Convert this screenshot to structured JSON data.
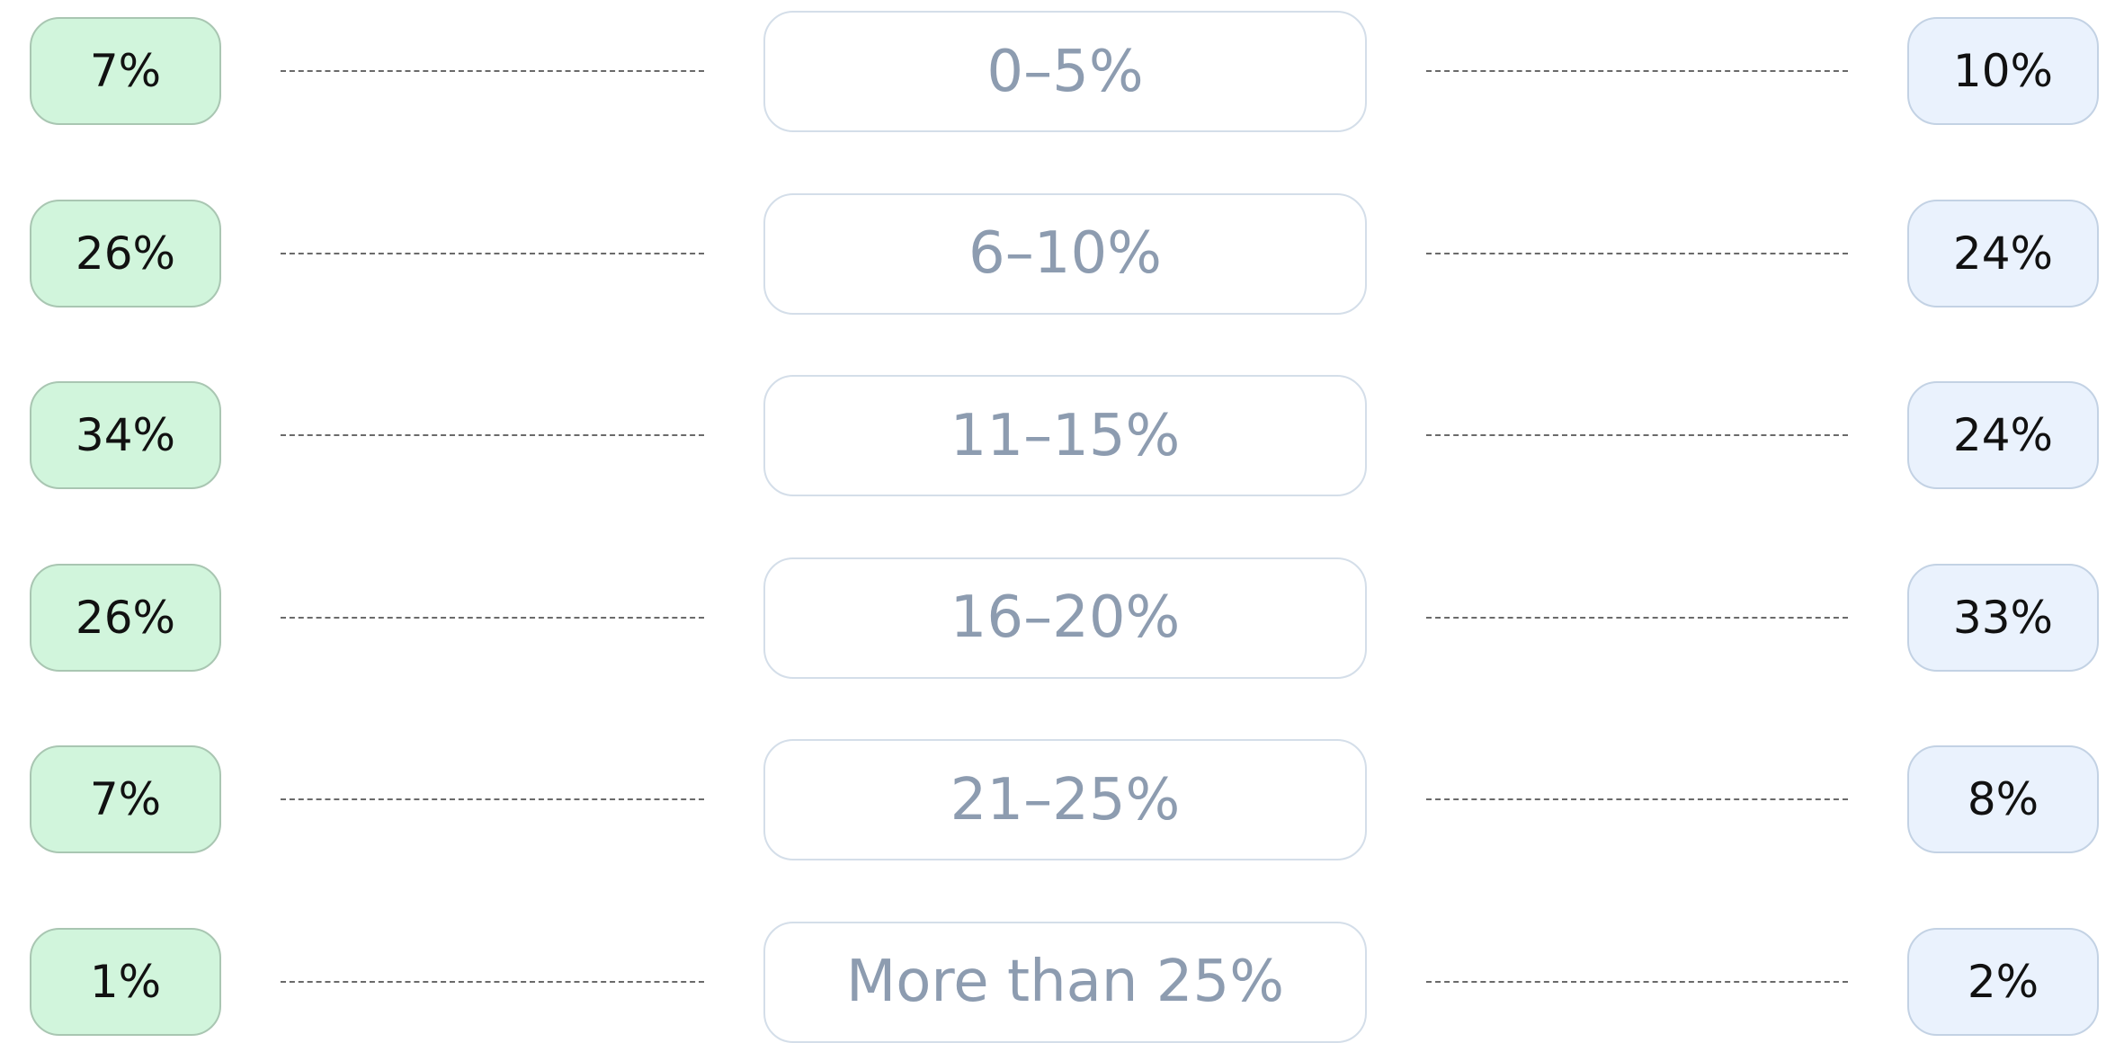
{
  "rows": [
    {
      "left": "7%",
      "range": "0–5%",
      "right": "10%"
    },
    {
      "left": "26%",
      "range": "6–10%",
      "right": "24%"
    },
    {
      "left": "34%",
      "range": "11–15%",
      "right": "24%"
    },
    {
      "left": "26%",
      "range": "16–20%",
      "right": "33%"
    },
    {
      "left": "7%",
      "range": "21–25%",
      "right": "8%"
    },
    {
      "left": "1%",
      "range": "More than 25%",
      "right": "2%"
    }
  ]
}
